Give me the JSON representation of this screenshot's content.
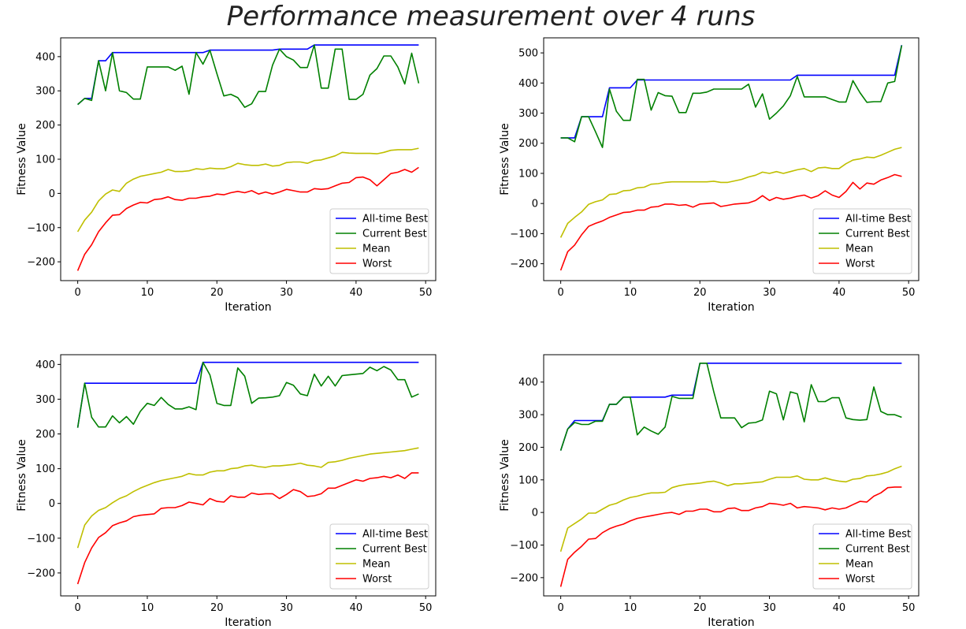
{
  "figure": {
    "title": "Performance measurement over 4 runs"
  },
  "chart_data": [
    {
      "type": "line",
      "xlabel": "Iteration",
      "ylabel": "Fitness Value",
      "xlim": [
        -2.45,
        51.45
      ],
      "ylim": [
        -255,
        455
      ],
      "xticks": [
        0,
        10,
        20,
        30,
        40,
        50
      ],
      "yticks": [
        -200,
        -100,
        0,
        100,
        200,
        300,
        400
      ],
      "legend": "lower-right",
      "x": [
        0,
        1,
        2,
        3,
        4,
        5,
        6,
        7,
        8,
        9,
        10,
        11,
        12,
        13,
        14,
        15,
        16,
        17,
        18,
        19,
        20,
        21,
        22,
        23,
        24,
        25,
        26,
        27,
        28,
        29,
        30,
        31,
        32,
        33,
        34,
        35,
        36,
        37,
        38,
        39,
        40,
        41,
        42,
        43,
        44,
        45,
        46,
        47,
        48,
        49
      ],
      "series": [
        {
          "name": "All-time Best",
          "color": "#0000ff",
          "values": [
            260,
            278,
            278,
            388,
            388,
            412,
            412,
            412,
            412,
            412,
            412,
            412,
            412,
            412,
            412,
            412,
            412,
            412,
            412,
            419,
            419,
            419,
            419,
            419,
            419,
            419,
            419,
            419,
            419,
            422,
            422,
            422,
            422,
            422,
            434,
            434,
            434,
            434,
            434,
            434,
            434,
            434,
            434,
            434,
            434,
            434,
            434,
            434,
            434,
            434
          ]
        },
        {
          "name": "Current Best",
          "color": "#008000",
          "values": [
            260,
            278,
            272,
            388,
            300,
            412,
            300,
            295,
            276,
            276,
            370,
            370,
            370,
            370,
            360,
            372,
            290,
            412,
            378,
            419,
            350,
            285,
            290,
            280,
            252,
            262,
            298,
            298,
            375,
            422,
            400,
            390,
            368,
            368,
            434,
            308,
            308,
            422,
            422,
            275,
            275,
            290,
            346,
            365,
            402,
            402,
            370,
            320,
            410,
            322
          ]
        },
        {
          "name": "Mean",
          "color": "#bfbf00",
          "values": [
            -112,
            -78,
            -55,
            -22,
            -2,
            10,
            6,
            30,
            42,
            50,
            54,
            58,
            62,
            70,
            64,
            64,
            66,
            72,
            70,
            74,
            72,
            72,
            78,
            88,
            84,
            82,
            82,
            86,
            80,
            82,
            90,
            92,
            92,
            88,
            96,
            98,
            104,
            110,
            120,
            118,
            117,
            117,
            117,
            116,
            120,
            126,
            128,
            128,
            128,
            132
          ]
        },
        {
          "name": "Worst",
          "color": "#ff0000",
          "values": [
            -226,
            -178,
            -150,
            -112,
            -86,
            -64,
            -62,
            -44,
            -34,
            -26,
            -28,
            -18,
            -16,
            -10,
            -18,
            -20,
            -14,
            -14,
            -10,
            -8,
            -2,
            -4,
            2,
            6,
            2,
            8,
            -2,
            4,
            -2,
            4,
            12,
            8,
            4,
            4,
            14,
            12,
            14,
            22,
            30,
            32,
            46,
            48,
            40,
            22,
            40,
            58,
            62,
            70,
            62,
            76
          ]
        }
      ]
    },
    {
      "type": "line",
      "xlabel": "Iteration",
      "ylabel": "Fitness Value",
      "xlim": [
        -2.45,
        51.45
      ],
      "ylim": [
        -256,
        550
      ],
      "xticks": [
        0,
        10,
        20,
        30,
        40,
        50
      ],
      "yticks": [
        -200,
        -100,
        0,
        100,
        200,
        300,
        400,
        500
      ],
      "legend": "lower-right",
      "x": [
        0,
        1,
        2,
        3,
        4,
        5,
        6,
        7,
        8,
        9,
        10,
        11,
        12,
        13,
        14,
        15,
        16,
        17,
        18,
        19,
        20,
        21,
        22,
        23,
        24,
        25,
        26,
        27,
        28,
        29,
        30,
        31,
        32,
        33,
        34,
        35,
        36,
        37,
        38,
        39,
        40,
        41,
        42,
        43,
        44,
        45,
        46,
        47,
        48,
        49
      ],
      "series": [
        {
          "name": "All-time Best",
          "color": "#0000ff",
          "values": [
            218,
            218,
            218,
            288,
            288,
            288,
            288,
            384,
            384,
            384,
            384,
            410,
            410,
            410,
            410,
            410,
            410,
            410,
            410,
            410,
            410,
            410,
            410,
            410,
            410,
            410,
            410,
            410,
            410,
            410,
            410,
            410,
            410,
            410,
            426,
            426,
            426,
            426,
            426,
            426,
            426,
            426,
            426,
            426,
            426,
            426,
            426,
            426,
            426,
            526
          ]
        },
        {
          "name": "Current Best",
          "color": "#008000",
          "values": [
            218,
            218,
            205,
            288,
            288,
            238,
            186,
            380,
            306,
            276,
            276,
            412,
            412,
            310,
            368,
            358,
            356,
            302,
            302,
            366,
            366,
            370,
            380,
            380,
            380,
            380,
            380,
            396,
            320,
            364,
            280,
            300,
            324,
            358,
            422,
            354,
            354,
            354,
            354,
            345,
            337,
            337,
            408,
            368,
            336,
            338,
            338,
            400,
            405,
            525
          ]
        },
        {
          "name": "Mean",
          "color": "#bfbf00",
          "values": [
            -113,
            -66,
            -46,
            -28,
            -3,
            6,
            12,
            30,
            32,
            42,
            44,
            52,
            54,
            64,
            66,
            70,
            72,
            72,
            72,
            72,
            72,
            72,
            74,
            70,
            70,
            75,
            80,
            88,
            94,
            104,
            100,
            106,
            100,
            106,
            112,
            116,
            106,
            118,
            120,
            116,
            116,
            132,
            144,
            148,
            154,
            152,
            160,
            170,
            180,
            186
          ]
        },
        {
          "name": "Worst",
          "color": "#ff0000",
          "values": [
            -222,
            -160,
            -138,
            -104,
            -76,
            -66,
            -58,
            -46,
            -38,
            -30,
            -28,
            -22,
            -22,
            -12,
            -10,
            -2,
            -2,
            -6,
            -4,
            -12,
            -2,
            0,
            2,
            -10,
            -6,
            -2,
            0,
            2,
            10,
            26,
            10,
            20,
            14,
            18,
            24,
            28,
            18,
            26,
            42,
            28,
            20,
            40,
            70,
            48,
            68,
            64,
            78,
            86,
            96,
            90
          ]
        }
      ]
    },
    {
      "type": "line",
      "xlabel": "Iteration",
      "ylabel": "Fitness Value",
      "xlim": [
        -2.45,
        51.45
      ],
      "ylim": [
        -266,
        428
      ],
      "xticks": [
        0,
        10,
        20,
        30,
        40,
        50
      ],
      "yticks": [
        -200,
        -100,
        0,
        100,
        200,
        300,
        400
      ],
      "legend": "lower-right",
      "x": [
        0,
        1,
        2,
        3,
        4,
        5,
        6,
        7,
        8,
        9,
        10,
        11,
        12,
        13,
        14,
        15,
        16,
        17,
        18,
        19,
        20,
        21,
        22,
        23,
        24,
        25,
        26,
        27,
        28,
        29,
        30,
        31,
        32,
        33,
        34,
        35,
        36,
        37,
        38,
        39,
        40,
        41,
        42,
        43,
        44,
        45,
        46,
        47,
        48,
        49
      ],
      "series": [
        {
          "name": "All-time Best",
          "color": "#0000ff",
          "values": [
            218,
            346,
            346,
            346,
            346,
            346,
            346,
            346,
            346,
            346,
            346,
            346,
            346,
            346,
            346,
            346,
            346,
            346,
            406,
            406,
            406,
            406,
            406,
            406,
            406,
            406,
            406,
            406,
            406,
            406,
            406,
            406,
            406,
            406,
            406,
            406,
            406,
            406,
            406,
            406,
            406,
            406,
            406,
            406,
            406,
            406,
            406,
            406,
            406,
            406
          ]
        },
        {
          "name": "Current Best",
          "color": "#008000",
          "values": [
            218,
            346,
            248,
            220,
            220,
            252,
            232,
            250,
            228,
            265,
            288,
            282,
            305,
            285,
            272,
            272,
            278,
            270,
            406,
            370,
            288,
            282,
            282,
            390,
            366,
            288,
            303,
            304,
            306,
            310,
            348,
            340,
            315,
            310,
            372,
            338,
            366,
            338,
            368,
            370,
            372,
            374,
            392,
            382,
            394,
            384,
            356,
            356,
            306,
            315
          ]
        },
        {
          "name": "Mean",
          "color": "#bfbf00",
          "values": [
            -128,
            -62,
            -36,
            -20,
            -12,
            2,
            14,
            22,
            34,
            44,
            52,
            60,
            66,
            70,
            74,
            78,
            86,
            82,
            82,
            90,
            94,
            94,
            100,
            102,
            108,
            110,
            106,
            104,
            108,
            108,
            110,
            112,
            116,
            110,
            108,
            104,
            118,
            120,
            124,
            130,
            134,
            138,
            142,
            144,
            146,
            148,
            150,
            152,
            156,
            160
          ]
        },
        {
          "name": "Worst",
          "color": "#ff0000",
          "values": [
            -232,
            -170,
            -128,
            -98,
            -84,
            -64,
            -56,
            -50,
            -38,
            -34,
            -32,
            -30,
            -14,
            -12,
            -12,
            -6,
            4,
            0,
            -4,
            14,
            6,
            4,
            22,
            18,
            18,
            30,
            26,
            28,
            28,
            14,
            26,
            40,
            34,
            20,
            22,
            28,
            44,
            44,
            52,
            60,
            68,
            64,
            72,
            74,
            78,
            74,
            82,
            72,
            88,
            88
          ]
        }
      ]
    },
    {
      "type": "line",
      "xlabel": "Iteration",
      "ylabel": "Fitness Value",
      "xlim": [
        -2.45,
        51.45
      ],
      "ylim": [
        -256,
        484
      ],
      "xticks": [
        0,
        10,
        20,
        30,
        40,
        50
      ],
      "yticks": [
        -200,
        -100,
        0,
        100,
        200,
        300,
        400
      ],
      "legend": "lower-right",
      "x": [
        0,
        1,
        2,
        3,
        4,
        5,
        6,
        7,
        8,
        9,
        10,
        11,
        12,
        13,
        14,
        15,
        16,
        17,
        18,
        19,
        20,
        21,
        22,
        23,
        24,
        25,
        26,
        27,
        28,
        29,
        30,
        31,
        32,
        33,
        34,
        35,
        36,
        37,
        38,
        39,
        40,
        41,
        42,
        43,
        44,
        45,
        46,
        47,
        48,
        49
      ],
      "series": [
        {
          "name": "All-time Best",
          "color": "#0000ff",
          "values": [
            190,
            256,
            282,
            282,
            282,
            282,
            282,
            332,
            332,
            354,
            354,
            354,
            354,
            354,
            354,
            354,
            360,
            360,
            360,
            360,
            458,
            458,
            458,
            458,
            458,
            458,
            458,
            458,
            458,
            458,
            458,
            458,
            458,
            458,
            458,
            458,
            458,
            458,
            458,
            458,
            458,
            458,
            458,
            458,
            458,
            458,
            458,
            458,
            458,
            458
          ]
        },
        {
          "name": "Current Best",
          "color": "#008000",
          "values": [
            190,
            256,
            276,
            270,
            270,
            280,
            280,
            332,
            332,
            354,
            354,
            238,
            262,
            250,
            240,
            262,
            356,
            350,
            350,
            350,
            458,
            458,
            370,
            290,
            290,
            290,
            260,
            274,
            276,
            284,
            372,
            364,
            284,
            370,
            364,
            278,
            392,
            340,
            340,
            352,
            352,
            290,
            285,
            283,
            285,
            385,
            310,
            300,
            300,
            292
          ]
        },
        {
          "name": "Mean",
          "color": "#bfbf00",
          "values": [
            -120,
            -48,
            -34,
            -20,
            -2,
            -2,
            10,
            22,
            28,
            38,
            46,
            50,
            56,
            60,
            60,
            62,
            76,
            82,
            86,
            88,
            90,
            94,
            96,
            90,
            82,
            88,
            88,
            90,
            92,
            94,
            102,
            108,
            108,
            108,
            112,
            102,
            100,
            100,
            106,
            100,
            96,
            94,
            102,
            104,
            112,
            114,
            118,
            124,
            134,
            142
          ]
        },
        {
          "name": "Worst",
          "color": "#ff0000",
          "values": [
            -228,
            -144,
            -122,
            -104,
            -82,
            -80,
            -62,
            -50,
            -42,
            -36,
            -26,
            -18,
            -14,
            -10,
            -6,
            -2,
            0,
            -6,
            4,
            4,
            10,
            10,
            2,
            2,
            12,
            14,
            6,
            6,
            14,
            18,
            28,
            26,
            22,
            28,
            14,
            18,
            16,
            14,
            8,
            14,
            10,
            14,
            24,
            34,
            32,
            50,
            60,
            76,
            78,
            78
          ]
        }
      ]
    }
  ]
}
